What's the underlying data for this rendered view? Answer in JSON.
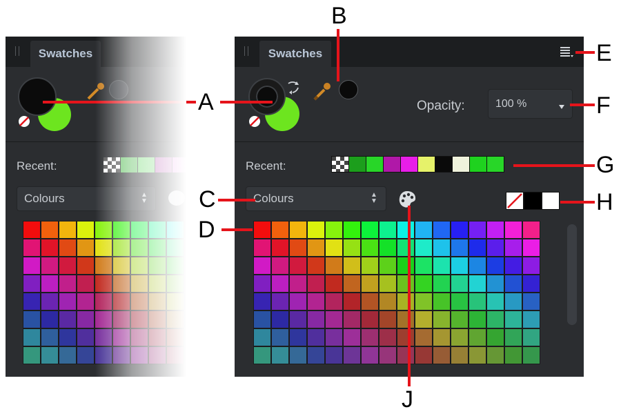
{
  "panel": {
    "tab_label": "Swatches",
    "opacity_label": "Opacity:",
    "opacity_value": "100 %",
    "recent_label": "Recent:",
    "palette_select_value": "Colours",
    "colors": {
      "panel_bg": "#2b2d30",
      "tabbar_bg": "#1c1e20",
      "fill_color": "#6de51f",
      "stroke_color": "#000000",
      "callout": "#e5141b"
    },
    "recent_swatches": [
      "transparent-checker",
      "#1c9e1c",
      "#28d628",
      "#b018a8",
      "#e81ee8",
      "#e6f26a",
      "#0a0a0a",
      "#eff2dc",
      "#1fd21f",
      "#28d628"
    ],
    "quick_swatches": [
      "none",
      "#000000",
      "#ffffff"
    ],
    "icons": [
      "panel-menu-icon",
      "eyedropper-icon",
      "swap-colors-icon",
      "no-color-icon",
      "palette-icon",
      "scrollbar-thumb"
    ]
  },
  "callouts": {
    "A": "A",
    "B": "B",
    "C": "C",
    "D": "D",
    "E": "E",
    "F": "F",
    "G": "G",
    "H": "H",
    "J": "J"
  }
}
